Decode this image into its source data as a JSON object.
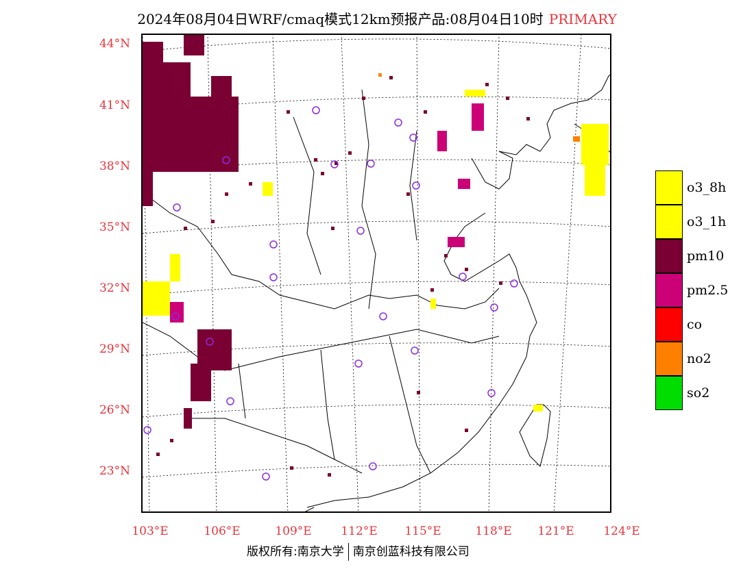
{
  "header": {
    "title": "2024年08月04日WRF/cmaq模式12km预报产品:08月04日10时",
    "tag": "PRIMARY"
  },
  "axes": {
    "lat_labels": [
      "44°N",
      "41°N",
      "38°N",
      "35°N",
      "32°N",
      "29°N",
      "26°N",
      "23°N"
    ],
    "lon_labels": [
      "103°E",
      "106°E",
      "109°E",
      "112°E",
      "115°E",
      "118°E",
      "121°E",
      "124°E"
    ]
  },
  "legend": {
    "items": [
      {
        "label": "o3_8h",
        "color": "#ffff00"
      },
      {
        "label": "o3_1h",
        "color": "#ffff00"
      },
      {
        "label": "pm10",
        "color": "#7a0033"
      },
      {
        "label": "pm2.5",
        "color": "#cc0077"
      },
      {
        "label": "co",
        "color": "#ff0000"
      },
      {
        "label": "no2",
        "color": "#ff8000"
      },
      {
        "label": "so2",
        "color": "#00dd00"
      }
    ]
  },
  "footer": {
    "left": "版权所有:南京大学",
    "right": "南京创蓝科技有限公司"
  },
  "colors": {
    "pm10": "#7a0033",
    "pm25": "#cc0077",
    "o3": "#ffff00",
    "no2": "#ff8000",
    "station": "#8a2be2",
    "label": "#e8333a"
  }
}
